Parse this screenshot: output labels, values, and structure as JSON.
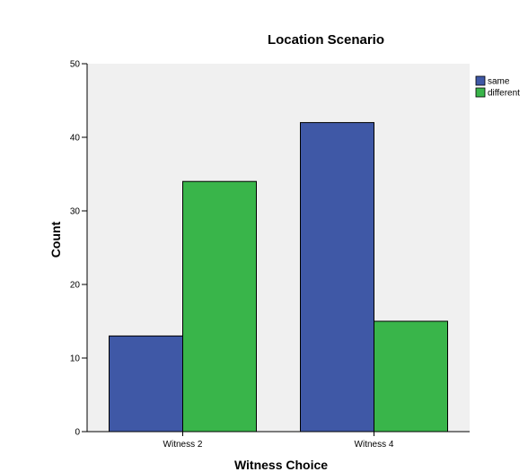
{
  "chart_data": {
    "type": "bar",
    "title": "Location Scenario",
    "xlabel": "Witness Choice",
    "ylabel": "Count",
    "categories": [
      "Witness 2",
      "Witness 4"
    ],
    "series": [
      {
        "name": "same",
        "values": [
          13,
          42
        ],
        "color": "#3f58a6"
      },
      {
        "name": "different",
        "values": [
          34,
          15
        ],
        "color": "#39b54a"
      }
    ],
    "ylim": [
      0,
      50
    ],
    "yticks": [
      "0",
      "10",
      "20",
      "30",
      "40",
      "50"
    ],
    "grid": false,
    "legend_position": "top-right",
    "plot_background": "#f0f0f0"
  }
}
